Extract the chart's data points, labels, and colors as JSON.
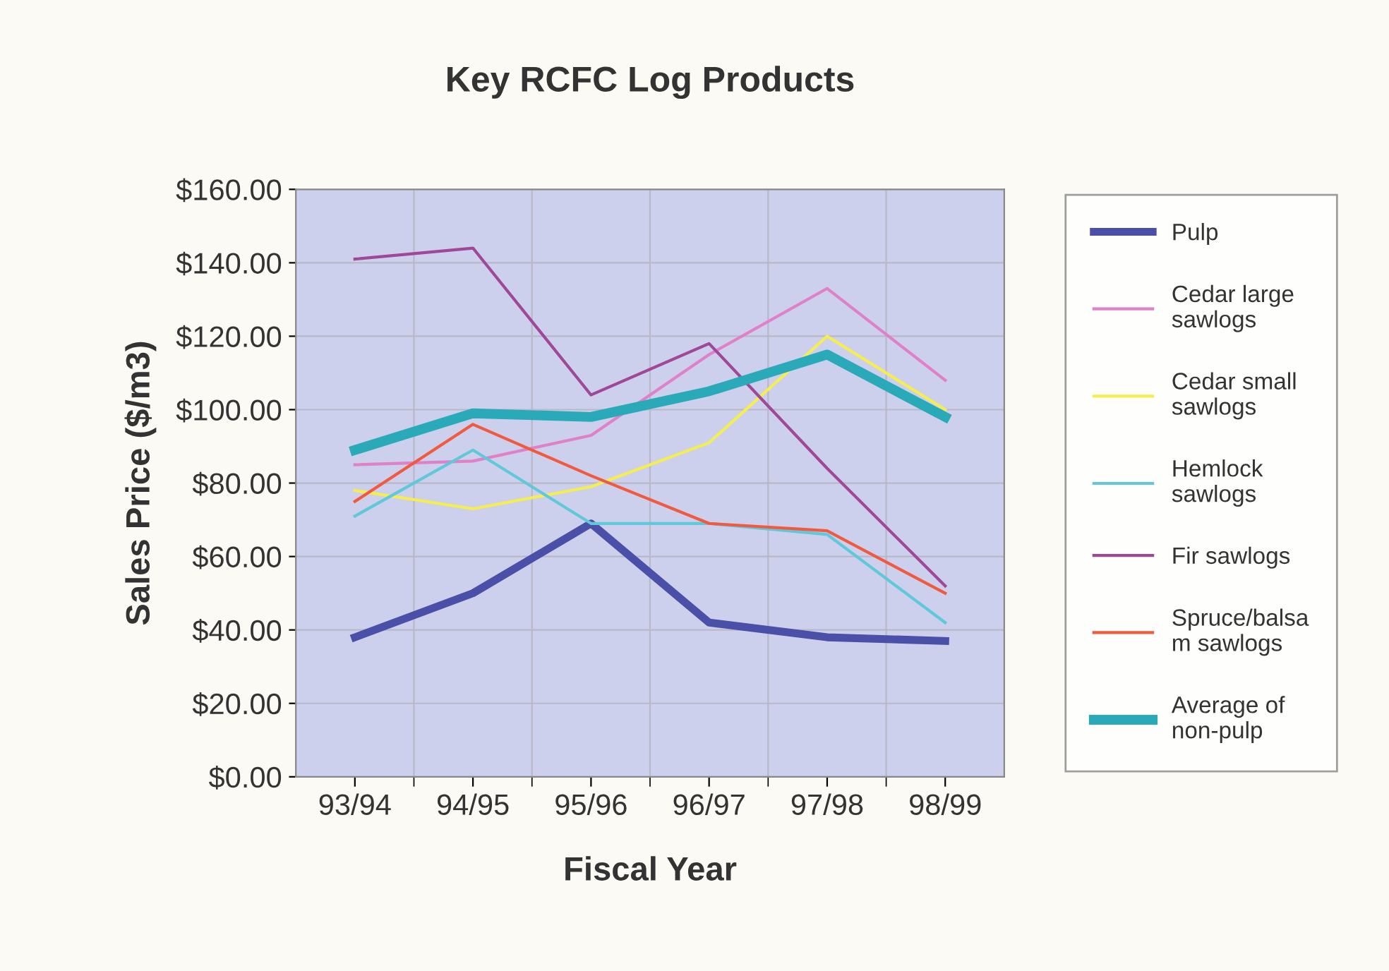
{
  "chart_data": {
    "type": "line",
    "title": "Key RCFC Log Products",
    "xlabel": "Fiscal Year",
    "ylabel": "Sales Price ($/m3)",
    "categories": [
      "93/94",
      "94/95",
      "95/96",
      "96/97",
      "97/98",
      "98/99"
    ],
    "series": [
      {
        "name": "Pulp",
        "color": "#4a4fa8",
        "values": [
          38,
          50,
          69,
          42,
          38,
          37
        ]
      },
      {
        "name": "Cedar large\nsawlogs",
        "color": "#e080c8",
        "values": [
          85,
          86,
          93,
          115,
          133,
          108
        ]
      },
      {
        "name": "Cedar small\nsawlogs",
        "color": "#f5ee50",
        "values": [
          78,
          73,
          79,
          91,
          120,
          100
        ]
      },
      {
        "name": "Hemlock\nsawlogs",
        "color": "#60c8d8",
        "values": [
          71,
          89,
          69,
          69,
          66,
          42
        ]
      },
      {
        "name": "Fir sawlogs",
        "color": "#a04898",
        "values": [
          141,
          144,
          104,
          118,
          84,
          52
        ]
      },
      {
        "name": "Spruce/balsa\nm sawlogs",
        "color": "#f05a40",
        "values": [
          75,
          96,
          82,
          69,
          67,
          50
        ]
      },
      {
        "name": "Average of\nnon-pulp",
        "color": "#2aaab8",
        "values": [
          89,
          99,
          98,
          105,
          115,
          98
        ]
      }
    ],
    "ylim": [
      0,
      160
    ],
    "yticks": [
      {
        "value": 0,
        "label": "$0.00"
      },
      {
        "value": 20,
        "label": "$20.00"
      },
      {
        "value": 40,
        "label": "$40.00"
      },
      {
        "value": 60,
        "label": "$60.00"
      },
      {
        "value": 80,
        "label": "$80.00"
      },
      {
        "value": 100,
        "label": "$100.00"
      },
      {
        "value": 120,
        "label": "$120.00"
      },
      {
        "value": 140,
        "label": "$140.00"
      },
      {
        "value": 160,
        "label": "$160.00"
      }
    ],
    "grid": true,
    "legend": "right",
    "marker": "none",
    "line_style": "solid"
  }
}
